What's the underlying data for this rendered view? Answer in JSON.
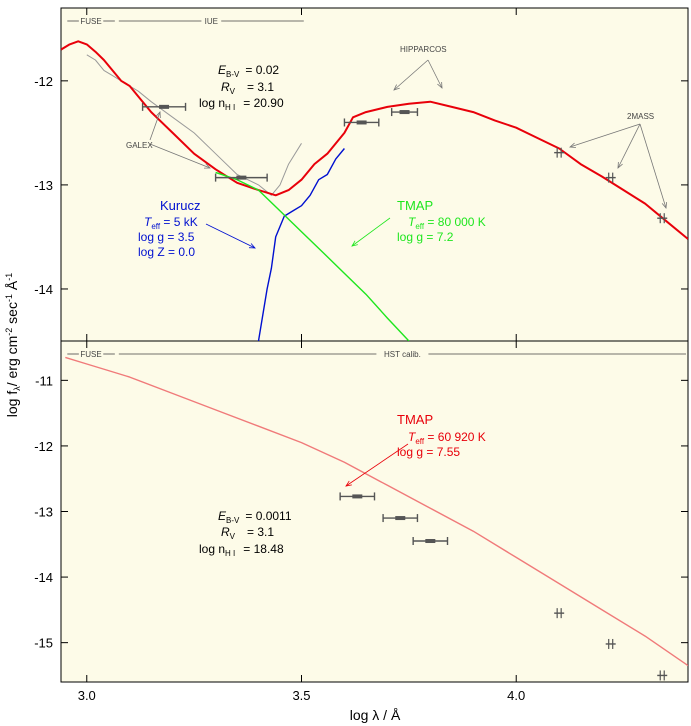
{
  "colors": {
    "background": "#fdfbe8",
    "red": "#e8000a",
    "blue": "#0010d0",
    "green": "#1ee61e",
    "grey": "#9a9a9a",
    "observed": "#555555",
    "model_light": "#f07a7a"
  },
  "axes": {
    "xlabel": "log λ / Å",
    "ylabel": "log f",
    "ylabel_sub": "λ",
    "ylabel_units": "/ erg cm",
    "ylabel_exp1": "-2",
    "ylabel_units2": " sec",
    "ylabel_exp2": "-1",
    "ylabel_units3": " Å",
    "ylabel_exp3": "-1"
  },
  "chart_data": [
    {
      "type": "line",
      "panel": "top",
      "xlim": [
        2.94,
        4.4
      ],
      "ylim": [
        -14.5,
        -11.3
      ],
      "xticks": [
        3.0,
        3.5,
        4.0
      ],
      "yticks": [
        -12,
        -13,
        -14
      ],
      "ytick_labels": [
        "-12",
        "-13",
        "-14"
      ],
      "instrument_bands": [
        {
          "label": "FUSE",
          "from": 2.95,
          "to": 3.07
        },
        {
          "label": "IUE",
          "from": 3.07,
          "to": 3.51
        }
      ],
      "series": [
        {
          "name": "observed",
          "color": "grey",
          "x": [
            3.0,
            3.02,
            3.04,
            3.06,
            3.08,
            3.1,
            3.12,
            3.15,
            3.2,
            3.25,
            3.3,
            3.35,
            3.4,
            3.43,
            3.45,
            3.47,
            3.5
          ],
          "y": [
            -11.75,
            -11.8,
            -11.9,
            -11.95,
            -12.0,
            -12.05,
            -12.1,
            -12.2,
            -12.35,
            -12.5,
            -12.7,
            -12.9,
            -13.0,
            -13.1,
            -13.0,
            -12.8,
            -12.6
          ]
        },
        {
          "name": "combined model",
          "color": "red",
          "x": [
            2.94,
            2.96,
            2.98,
            3.0,
            3.02,
            3.04,
            3.06,
            3.08,
            3.1,
            3.12,
            3.15,
            3.2,
            3.25,
            3.3,
            3.35,
            3.4,
            3.44,
            3.47,
            3.5,
            3.53,
            3.56,
            3.6,
            3.62,
            3.65,
            3.7,
            3.75,
            3.8,
            3.85,
            3.9,
            3.95,
            4.0,
            4.05,
            4.1,
            4.15,
            4.2,
            4.25,
            4.3,
            4.35,
            4.4
          ],
          "y": [
            -11.7,
            -11.65,
            -11.62,
            -11.65,
            -11.72,
            -11.8,
            -11.9,
            -12.0,
            -12.05,
            -12.15,
            -12.3,
            -12.5,
            -12.7,
            -12.85,
            -12.98,
            -13.05,
            -13.1,
            -13.05,
            -12.95,
            -12.8,
            -12.7,
            -12.5,
            -12.35,
            -12.3,
            -12.25,
            -12.22,
            -12.2,
            -12.25,
            -12.3,
            -12.38,
            -12.45,
            -12.55,
            -12.65,
            -12.8,
            -12.92,
            -13.05,
            -13.18,
            -13.35,
            -13.52
          ]
        },
        {
          "name": "Kurucz",
          "color": "blue",
          "x": [
            3.4,
            3.42,
            3.43,
            3.44,
            3.46,
            3.48,
            3.5,
            3.52,
            3.54,
            3.56,
            3.58,
            3.6
          ],
          "y": [
            -14.5,
            -14.0,
            -13.8,
            -13.5,
            -13.3,
            -13.25,
            -13.2,
            -13.1,
            -12.95,
            -12.9,
            -12.75,
            -12.65
          ]
        },
        {
          "name": "TMAP",
          "color": "green",
          "x": [
            3.3,
            3.35,
            3.4,
            3.45,
            3.5,
            3.55,
            3.6,
            3.65,
            3.7,
            3.75
          ],
          "y": [
            -12.88,
            -12.95,
            -13.05,
            -13.25,
            -13.45,
            -13.65,
            -13.85,
            -14.05,
            -14.28,
            -14.5
          ]
        }
      ],
      "photometry": [
        {
          "x": 3.18,
          "y": -12.25,
          "xerr": 0.05
        },
        {
          "x": 3.36,
          "y": -12.93,
          "xerr": 0.06
        },
        {
          "x": 3.64,
          "y": -12.4,
          "xerr": 0.04
        },
        {
          "x": 3.74,
          "y": -12.3,
          "xerr": 0.03
        },
        {
          "x": 4.1,
          "y": -12.69,
          "xerr": 0.0
        },
        {
          "x": 4.22,
          "y": -12.93,
          "xerr": 0.0
        },
        {
          "x": 4.34,
          "y": -13.32,
          "xerr": 0.0
        }
      ],
      "annotations": {
        "params": {
          "e_label": "E",
          "e_sub": "B-V",
          "e_val": "=    0.02",
          "r_label": "R",
          "r_sub": "V",
          "r_val": "=    3.1",
          "n_label": "log n",
          "n_sub": "H I",
          "n_val": "=  20.90"
        },
        "galex": "GALEX",
        "hipparcos": "HIPPARCOS",
        "twomass": "2MASS",
        "kurucz": {
          "title": "Kurucz",
          "teff_label": "T",
          "teff_sub": "eff",
          "teff_val": " = 5 kK",
          "logg": "log g = 3.5",
          "logz": "log Z = 0.0"
        },
        "tmap": {
          "title": "TMAP",
          "teff_label": "T",
          "teff_sub": "eff",
          "teff_val": " = 80 000 K",
          "logg": "log g = 7.2"
        }
      }
    },
    {
      "type": "line",
      "panel": "bottom",
      "xlim": [
        2.94,
        4.4
      ],
      "ylim": [
        -15.6,
        -10.4
      ],
      "xticks": [
        3.0,
        3.5,
        4.0
      ],
      "xtick_labels": [
        "3.0",
        "3.5",
        "4.0"
      ],
      "yticks": [
        -11,
        -12,
        -13,
        -14,
        -15
      ],
      "ytick_labels": [
        "-11",
        "-12",
        "-13",
        "-14",
        "-15"
      ],
      "instrument_bands": [
        {
          "label": "FUSE",
          "from": 2.95,
          "to": 3.07
        },
        {
          "label": "HST calib.",
          "from": 3.07,
          "to": 4.4
        }
      ],
      "series": [
        {
          "name": "TMAP",
          "color": "model_light",
          "x": [
            2.95,
            3.0,
            3.05,
            3.1,
            3.2,
            3.3,
            3.4,
            3.5,
            3.6,
            3.7,
            3.8,
            3.9,
            4.0,
            4.1,
            4.2,
            4.3,
            4.4
          ],
          "y": [
            -10.65,
            -10.75,
            -10.85,
            -10.95,
            -11.2,
            -11.45,
            -11.7,
            -11.95,
            -12.25,
            -12.6,
            -12.95,
            -13.3,
            -13.7,
            -14.1,
            -14.5,
            -14.9,
            -15.35
          ]
        }
      ],
      "photometry": [
        {
          "x": 3.63,
          "y": -12.77,
          "xerr": 0.04
        },
        {
          "x": 3.73,
          "y": -13.1,
          "xerr": 0.04
        },
        {
          "x": 3.8,
          "y": -13.45,
          "xerr": 0.04
        },
        {
          "x": 4.1,
          "y": -14.55,
          "xerr": 0.0
        },
        {
          "x": 4.22,
          "y": -15.02,
          "xerr": 0.0
        },
        {
          "x": 4.34,
          "y": -15.5,
          "xerr": 0.0
        }
      ],
      "annotations": {
        "params": {
          "e_label": "E",
          "e_sub": "B-V",
          "e_val": "=    0.0011",
          "r_label": "R",
          "r_sub": "V",
          "r_val": "=    3.1",
          "n_label": "log n",
          "n_sub": "H I",
          "n_val": "=  18.48"
        },
        "tmap": {
          "title": "TMAP",
          "teff_label": "T",
          "teff_sub": "eff",
          "teff_val": " = 60 920 K",
          "logg": "log g = 7.55"
        }
      }
    }
  ]
}
